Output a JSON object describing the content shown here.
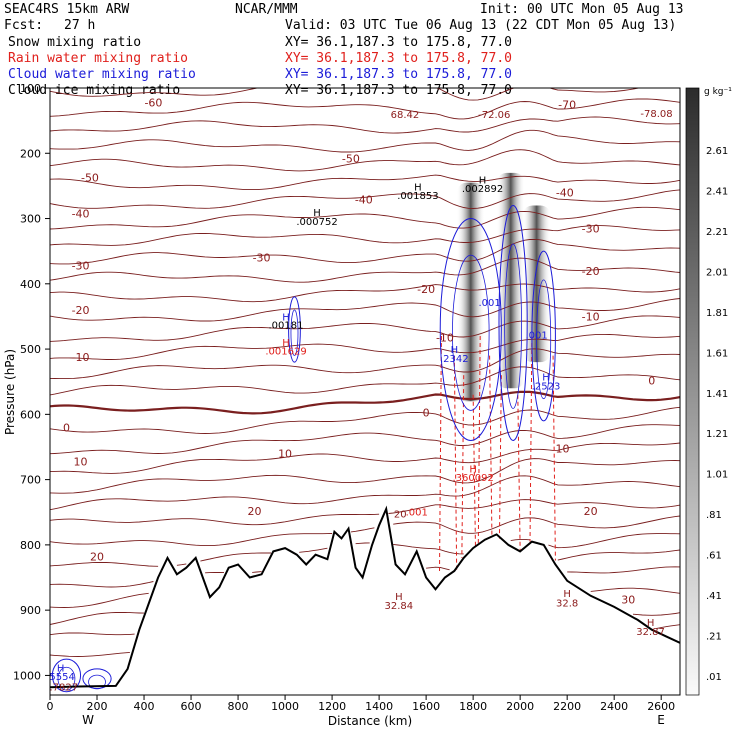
{
  "header": {
    "model": "SEAC4RS 15km ARW",
    "org": "NCAR/MMM",
    "init": "Init: 00 UTC Mon 05 Aug 13",
    "fcst_label": "Fcst:",
    "fcst_value": "27 h",
    "valid": "Valid: 03 UTC Tue 06 Aug 13 (22 CDT Mon 05 Aug 13)"
  },
  "legend": [
    {
      "label": "Snow mixing ratio",
      "xy": "XY=  36.1,187.3 to 175.8, 77.0",
      "color": "#000000"
    },
    {
      "label": "Rain water mixing ratio",
      "xy": "XY=  36.1,187.3 to 175.8, 77.0",
      "color": "#e0201c"
    },
    {
      "label": "Cloud water mixing ratio",
      "xy": "XY=  36.1,187.3 to 175.8, 77.0",
      "color": "#1c1cd8"
    },
    {
      "label": "Cloud ice mixing ratio",
      "xy": "XY=  36.1,187.3 to 175.8, 77.0",
      "color": "#000000"
    }
  ],
  "chart_data": {
    "type": "contour cross-section",
    "x_axis": {
      "label": "Distance (km)",
      "min": 0,
      "max": 2680,
      "ticks": [
        0,
        200,
        400,
        600,
        800,
        1000,
        1200,
        1400,
        1600,
        1800,
        2000,
        2200,
        2400,
        2600
      ],
      "end_labels": [
        "W",
        "E"
      ]
    },
    "y_axis": {
      "label": "Pressure (hPa)",
      "min": 100,
      "max": 1030,
      "ticks": [
        100,
        200,
        300,
        400,
        500,
        600,
        700,
        800,
        900,
        1000
      ]
    },
    "colorbar": {
      "unit": "g kg⁻¹",
      "levels": [
        "2.61",
        "2.41",
        "2.21",
        "2.01",
        "1.81",
        "1.61",
        "1.41",
        "1.21",
        "1.01",
        ".81",
        ".61",
        ".41",
        ".21",
        ".01"
      ]
    },
    "temperature_contours": {
      "labels": [
        "-70",
        "-60",
        "-50",
        "-40",
        "-30",
        "-20",
        "-10",
        "0",
        "10",
        "20",
        "30"
      ],
      "label_marks": [
        {
          "text": "-60",
          "x": 440,
          "p": 122
        },
        {
          "text": "-70",
          "x": 2200,
          "p": 125
        },
        {
          "text": "-50",
          "x": 170,
          "p": 237
        },
        {
          "text": "-50",
          "x": 1280,
          "p": 208
        },
        {
          "text": "-40",
          "x": 130,
          "p": 292
        },
        {
          "text": "-40",
          "x": 1335,
          "p": 271
        },
        {
          "text": "-40",
          "x": 2190,
          "p": 260
        },
        {
          "text": "-30",
          "x": 130,
          "p": 372
        },
        {
          "text": "-30",
          "x": 900,
          "p": 360
        },
        {
          "text": "-30",
          "x": 2300,
          "p": 315
        },
        {
          "text": "-20",
          "x": 130,
          "p": 440
        },
        {
          "text": "-20",
          "x": 1600,
          "p": 408
        },
        {
          "text": "-20",
          "x": 2300,
          "p": 380
        },
        {
          "text": "-10",
          "x": 130,
          "p": 512
        },
        {
          "text": "-10",
          "x": 1680,
          "p": 482
        },
        {
          "text": "-10",
          "x": 2300,
          "p": 450
        },
        {
          "text": "0",
          "x": 70,
          "p": 620
        },
        {
          "text": "0",
          "x": 1600,
          "p": 597
        },
        {
          "text": "0",
          "x": 2560,
          "p": 548
        },
        {
          "text": "10",
          "x": 130,
          "p": 672
        },
        {
          "text": "10",
          "x": 1000,
          "p": 660
        },
        {
          "text": "10",
          "x": 2180,
          "p": 652
        },
        {
          "text": "20",
          "x": 200,
          "p": 818
        },
        {
          "text": "20",
          "x": 870,
          "p": 748
        },
        {
          "text": "20",
          "x": 2300,
          "p": 748
        },
        {
          "text": "30",
          "x": 2460,
          "p": 884
        }
      ]
    },
    "extrema_labels": [
      {
        "text": "H",
        "x": 1136,
        "p": 290,
        "color": "#000000"
      },
      {
        "text": ".000752",
        "x": 1136,
        "p": 304,
        "color": "#000000"
      },
      {
        "text": "H",
        "x": 1565,
        "p": 251,
        "color": "#000000"
      },
      {
        "text": ".001853",
        "x": 1565,
        "p": 264,
        "color": "#000000"
      },
      {
        "text": "H",
        "x": 1840,
        "p": 240,
        "color": "#000000"
      },
      {
        "text": ".002892",
        "x": 1840,
        "p": 253,
        "color": "#000000"
      },
      {
        "text": "68.42",
        "x": 1510,
        "p": 140,
        "color": "#8b1a1a"
      },
      {
        "text": "-72.06",
        "x": 1890,
        "p": 140,
        "color": "#8b1a1a"
      },
      {
        "text": "-78.08",
        "x": 2580,
        "p": 138,
        "color": "#8b1a1a"
      },
      {
        "text": "H",
        "x": 1004,
        "p": 450,
        "color": "#1c1cd8"
      },
      {
        "text": ".00181",
        "x": 1004,
        "p": 462,
        "color": "#000000"
      },
      {
        "text": "H",
        "x": 1004,
        "p": 489,
        "color": "#e0201c"
      },
      {
        "text": ".001629",
        "x": 1004,
        "p": 502,
        "color": "#e0201c"
      },
      {
        "text": ".001",
        "x": 1870,
        "p": 428,
        "color": "#1c1cd8"
      },
      {
        "text": ".001",
        "x": 2070,
        "p": 478,
        "color": "#1c1cd8"
      },
      {
        "text": "H",
        "x": 1720,
        "p": 500,
        "color": "#1c1cd8"
      },
      {
        "text": ".2342",
        "x": 1720,
        "p": 514,
        "color": "#1c1cd8"
      },
      {
        "text": "H",
        "x": 2110,
        "p": 542,
        "color": "#1c1cd8"
      },
      {
        "text": ".2523",
        "x": 2110,
        "p": 556,
        "color": "#1c1cd8"
      },
      {
        "text": "H",
        "x": 1800,
        "p": 683,
        "color": "#e0201c"
      },
      {
        "text": ".360092",
        "x": 1800,
        "p": 696,
        "color": "#e0201c"
      },
      {
        "text": "20",
        "x": 1490,
        "p": 752,
        "color": "#8b1a1a"
      },
      {
        "text": ".001",
        "x": 1560,
        "p": 749,
        "color": "#e0201c"
      },
      {
        "text": "H",
        "x": 1484,
        "p": 878,
        "color": "#8b1a1a"
      },
      {
        "text": "32.84",
        "x": 1484,
        "p": 892,
        "color": "#8b1a1a"
      },
      {
        "text": "H",
        "x": 2200,
        "p": 874,
        "color": "#8b1a1a"
      },
      {
        "text": "32.8",
        "x": 2200,
        "p": 888,
        "color": "#8b1a1a"
      },
      {
        "text": "H",
        "x": 2555,
        "p": 918,
        "color": "#8b1a1a"
      },
      {
        "text": "32.87",
        "x": 2555,
        "p": 932,
        "color": "#8b1a1a"
      },
      {
        "text": "H",
        "x": 45,
        "p": 988,
        "color": "#1c1cd8"
      },
      {
        "text": ".5554",
        "x": 45,
        "p": 1001,
        "color": "#1c1cd8"
      },
      {
        "text": "0.7827",
        "x": 45,
        "p": 1017,
        "color": "#8b1a1a"
      }
    ],
    "terrain_surface_hPa": [
      [
        0,
        1018
      ],
      [
        120,
        1017
      ],
      [
        280,
        1016
      ],
      [
        330,
        990
      ],
      [
        380,
        930
      ],
      [
        420,
        890
      ],
      [
        460,
        850
      ],
      [
        500,
        820
      ],
      [
        540,
        845
      ],
      [
        580,
        835
      ],
      [
        620,
        820
      ],
      [
        680,
        880
      ],
      [
        720,
        865
      ],
      [
        760,
        835
      ],
      [
        800,
        830
      ],
      [
        850,
        850
      ],
      [
        900,
        845
      ],
      [
        950,
        810
      ],
      [
        1000,
        805
      ],
      [
        1050,
        815
      ],
      [
        1090,
        830
      ],
      [
        1130,
        815
      ],
      [
        1180,
        822
      ],
      [
        1210,
        780
      ],
      [
        1240,
        790
      ],
      [
        1270,
        775
      ],
      [
        1300,
        835
      ],
      [
        1330,
        850
      ],
      [
        1370,
        800
      ],
      [
        1400,
        770
      ],
      [
        1430,
        745
      ],
      [
        1470,
        830
      ],
      [
        1510,
        845
      ],
      [
        1560,
        810
      ],
      [
        1600,
        850
      ],
      [
        1640,
        868
      ],
      [
        1680,
        850
      ],
      [
        1720,
        840
      ],
      [
        1760,
        820
      ],
      [
        1800,
        805
      ],
      [
        1850,
        792
      ],
      [
        1900,
        784
      ],
      [
        1950,
        800
      ],
      [
        2000,
        810
      ],
      [
        2050,
        795
      ],
      [
        2100,
        800
      ],
      [
        2150,
        830
      ],
      [
        2200,
        855
      ],
      [
        2300,
        878
      ],
      [
        2400,
        895
      ],
      [
        2500,
        915
      ],
      [
        2560,
        930
      ],
      [
        2620,
        940
      ],
      [
        2680,
        950
      ]
    ],
    "snow_core_columns": [
      {
        "x": 1790,
        "p_top": 245,
        "p_bottom": 580
      },
      {
        "x": 1960,
        "p_top": 230,
        "p_bottom": 560
      },
      {
        "x": 2070,
        "p_top": 280,
        "p_bottom": 520
      }
    ]
  }
}
